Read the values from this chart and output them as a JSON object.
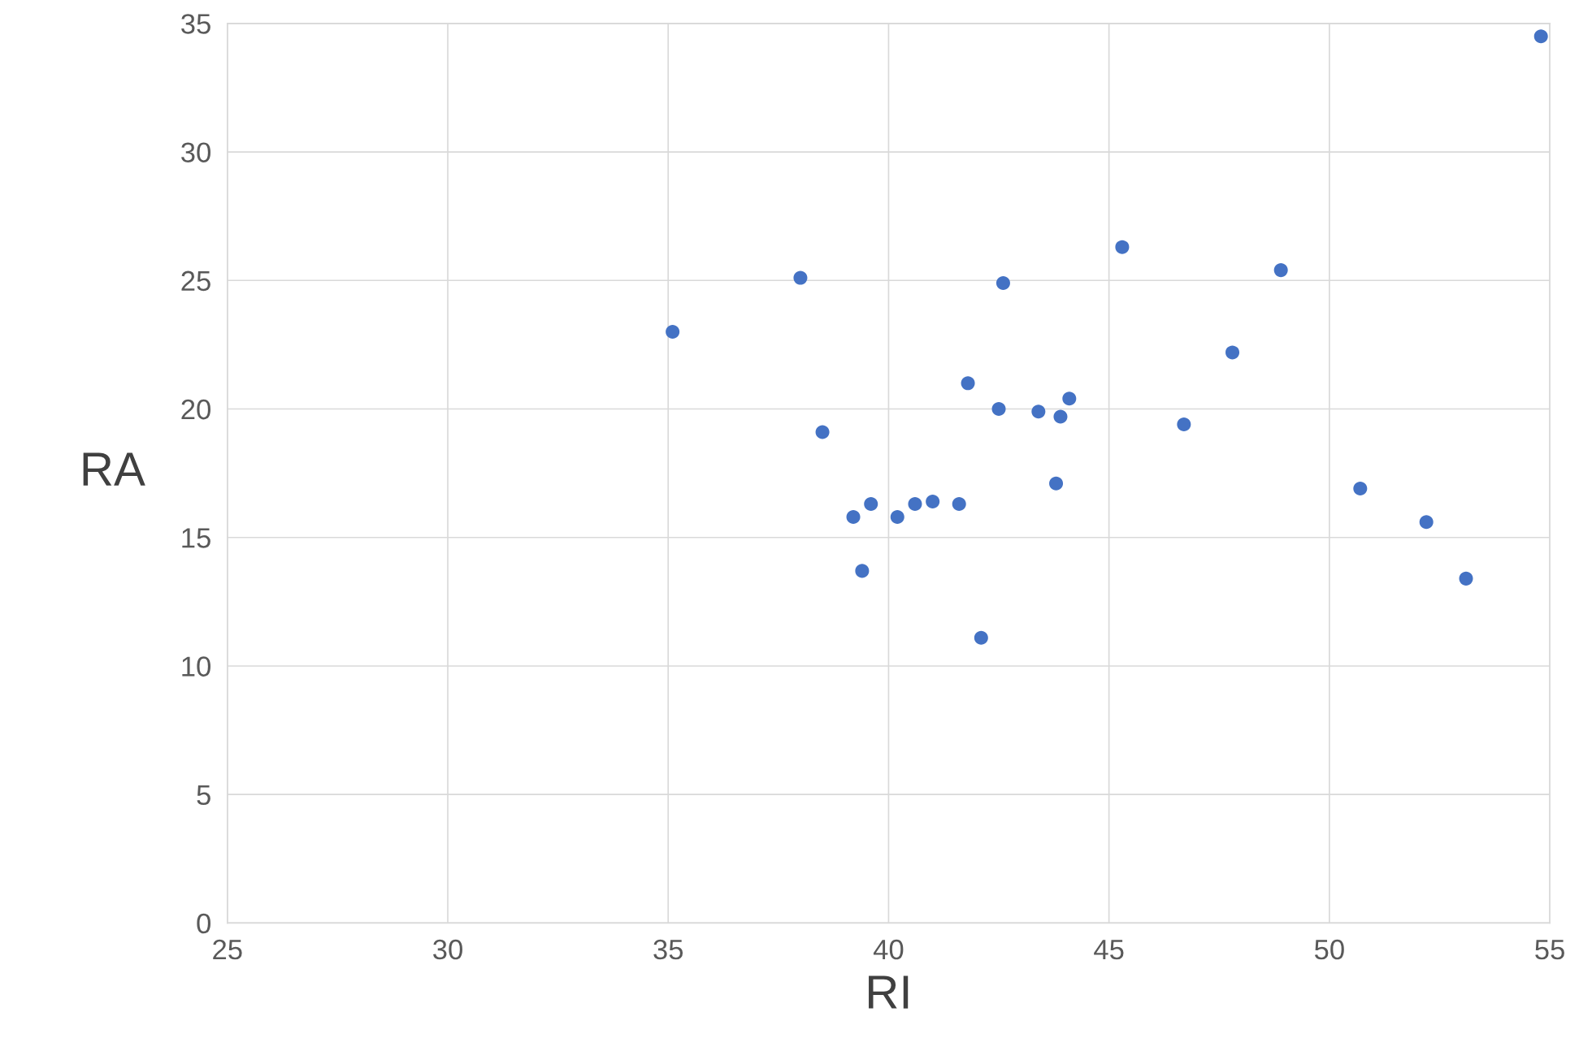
{
  "chart_data": {
    "type": "scatter",
    "xlabel": "RI",
    "ylabel": "RA",
    "series": [
      {
        "color": "#4472c4",
        "x": [
          35.1,
          38.0,
          38.5,
          39.2,
          39.4,
          39.6,
          40.2,
          40.6,
          41.0,
          41.6,
          41.8,
          42.1,
          42.5,
          42.6,
          43.4,
          43.8,
          43.9,
          44.1,
          45.3,
          46.7,
          47.8,
          48.9,
          50.7,
          52.2,
          53.1,
          54.8
        ],
        "values": [
          23.0,
          25.1,
          19.1,
          15.8,
          13.7,
          16.3,
          15.8,
          16.3,
          16.4,
          16.3,
          21.0,
          11.1,
          20.0,
          24.9,
          19.9,
          17.1,
          19.7,
          20.4,
          26.3,
          19.4,
          22.2,
          25.4,
          16.9,
          15.6,
          13.4,
          34.5
        ]
      }
    ],
    "xlim": [
      25,
      55
    ],
    "xticks": [
      25,
      30,
      35,
      40,
      45,
      50,
      55
    ],
    "ylim": [
      0,
      35
    ],
    "yticks": [
      0,
      5,
      10,
      15,
      20,
      25,
      30,
      35
    ],
    "grid": true,
    "marker": "circle"
  }
}
